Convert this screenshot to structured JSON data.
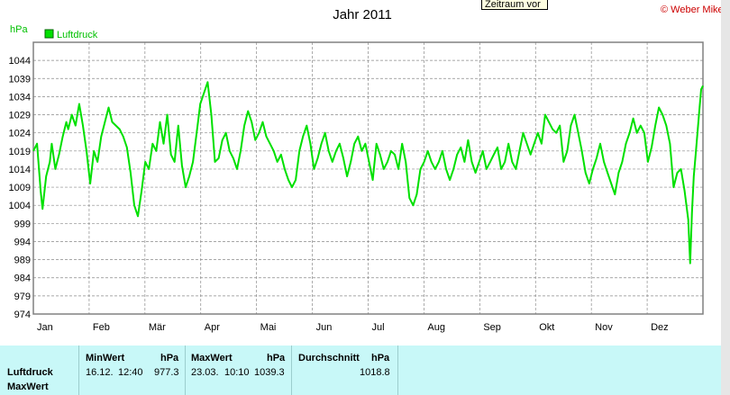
{
  "chart_data": {
    "type": "line",
    "title": "Jahr 2011",
    "ylabel": "hPa",
    "ylim": [
      974,
      1049
    ],
    "y_ticks": [
      974,
      979,
      984,
      989,
      994,
      999,
      1004,
      1009,
      1014,
      1019,
      1024,
      1029,
      1034,
      1039,
      1044
    ],
    "x_tick_labels": [
      "Jan",
      "Feb",
      "Mär",
      "Apr",
      "Mai",
      "Jun",
      "Jul",
      "Aug",
      "Sep",
      "Okt",
      "Nov",
      "Dez"
    ],
    "x_unit_days": 365,
    "grid": true,
    "legend": "top-left",
    "series": [
      {
        "name": "Luftdruck",
        "color": "#00e000",
        "points": [
          [
            0,
            1019
          ],
          [
            2,
            1021
          ],
          [
            4,
            1008
          ],
          [
            5,
            1003
          ],
          [
            7,
            1012
          ],
          [
            9,
            1016
          ],
          [
            10,
            1021
          ],
          [
            12,
            1014
          ],
          [
            14,
            1018
          ],
          [
            16,
            1023
          ],
          [
            18,
            1027
          ],
          [
            19,
            1025
          ],
          [
            21,
            1029
          ],
          [
            23,
            1026
          ],
          [
            25,
            1032
          ],
          [
            27,
            1026
          ],
          [
            29,
            1019
          ],
          [
            31,
            1010
          ],
          [
            33,
            1019
          ],
          [
            35,
            1016
          ],
          [
            37,
            1023
          ],
          [
            39,
            1027
          ],
          [
            41,
            1031
          ],
          [
            43,
            1027
          ],
          [
            45,
            1026
          ],
          [
            47,
            1025
          ],
          [
            49,
            1023
          ],
          [
            51,
            1020
          ],
          [
            53,
            1013
          ],
          [
            55,
            1004
          ],
          [
            57,
            1001
          ],
          [
            59,
            1008
          ],
          [
            61,
            1016
          ],
          [
            63,
            1014
          ],
          [
            65,
            1021
          ],
          [
            67,
            1019
          ],
          [
            69,
            1027
          ],
          [
            71,
            1021
          ],
          [
            73,
            1029
          ],
          [
            75,
            1018
          ],
          [
            77,
            1016
          ],
          [
            79,
            1026
          ],
          [
            81,
            1015
          ],
          [
            83,
            1009
          ],
          [
            85,
            1012
          ],
          [
            87,
            1016
          ],
          [
            89,
            1024
          ],
          [
            91,
            1032
          ],
          [
            93,
            1035
          ],
          [
            95,
            1038
          ],
          [
            97,
            1029
          ],
          [
            99,
            1016
          ],
          [
            101,
            1017
          ],
          [
            103,
            1022
          ],
          [
            105,
            1024
          ],
          [
            107,
            1019
          ],
          [
            109,
            1017
          ],
          [
            111,
            1014
          ],
          [
            113,
            1019
          ],
          [
            115,
            1026
          ],
          [
            117,
            1030
          ],
          [
            119,
            1027
          ],
          [
            121,
            1022
          ],
          [
            123,
            1024
          ],
          [
            125,
            1027
          ],
          [
            127,
            1023
          ],
          [
            129,
            1021
          ],
          [
            131,
            1019
          ],
          [
            133,
            1016
          ],
          [
            135,
            1018
          ],
          [
            137,
            1014
          ],
          [
            139,
            1011
          ],
          [
            141,
            1009
          ],
          [
            143,
            1011
          ],
          [
            145,
            1019
          ],
          [
            147,
            1023
          ],
          [
            149,
            1026
          ],
          [
            151,
            1021
          ],
          [
            153,
            1014
          ],
          [
            155,
            1017
          ],
          [
            157,
            1021
          ],
          [
            159,
            1024
          ],
          [
            161,
            1019
          ],
          [
            163,
            1016
          ],
          [
            165,
            1019
          ],
          [
            167,
            1021
          ],
          [
            169,
            1017
          ],
          [
            171,
            1012
          ],
          [
            173,
            1016
          ],
          [
            175,
            1021
          ],
          [
            177,
            1023
          ],
          [
            179,
            1019
          ],
          [
            181,
            1021
          ],
          [
            183,
            1016
          ],
          [
            185,
            1011
          ],
          [
            187,
            1021
          ],
          [
            189,
            1018
          ],
          [
            191,
            1014
          ],
          [
            193,
            1016
          ],
          [
            195,
            1019
          ],
          [
            197,
            1018
          ],
          [
            199,
            1014
          ],
          [
            201,
            1021
          ],
          [
            203,
            1016
          ],
          [
            205,
            1006
          ],
          [
            207,
            1004
          ],
          [
            209,
            1007
          ],
          [
            211,
            1014
          ],
          [
            213,
            1016
          ],
          [
            215,
            1019
          ],
          [
            217,
            1016
          ],
          [
            219,
            1014
          ],
          [
            221,
            1016
          ],
          [
            223,
            1019
          ],
          [
            225,
            1014
          ],
          [
            227,
            1011
          ],
          [
            229,
            1014
          ],
          [
            231,
            1018
          ],
          [
            233,
            1020
          ],
          [
            235,
            1016
          ],
          [
            237,
            1022
          ],
          [
            239,
            1016
          ],
          [
            241,
            1013
          ],
          [
            243,
            1016
          ],
          [
            245,
            1019
          ],
          [
            247,
            1014
          ],
          [
            249,
            1016
          ],
          [
            251,
            1018
          ],
          [
            253,
            1020
          ],
          [
            255,
            1014
          ],
          [
            257,
            1016
          ],
          [
            259,
            1021
          ],
          [
            261,
            1016
          ],
          [
            263,
            1014
          ],
          [
            265,
            1019
          ],
          [
            267,
            1024
          ],
          [
            269,
            1021
          ],
          [
            271,
            1018
          ],
          [
            273,
            1021
          ],
          [
            275,
            1024
          ],
          [
            277,
            1021
          ],
          [
            279,
            1029
          ],
          [
            281,
            1027
          ],
          [
            283,
            1025
          ],
          [
            285,
            1024
          ],
          [
            287,
            1026
          ],
          [
            289,
            1016
          ],
          [
            291,
            1019
          ],
          [
            293,
            1026
          ],
          [
            295,
            1029
          ],
          [
            297,
            1024
          ],
          [
            299,
            1019
          ],
          [
            301,
            1013
          ],
          [
            303,
            1010
          ],
          [
            305,
            1014
          ],
          [
            307,
            1017
          ],
          [
            309,
            1021
          ],
          [
            311,
            1016
          ],
          [
            313,
            1013
          ],
          [
            315,
            1010
          ],
          [
            317,
            1007
          ],
          [
            319,
            1013
          ],
          [
            321,
            1016
          ],
          [
            323,
            1021
          ],
          [
            325,
            1024
          ],
          [
            327,
            1028
          ],
          [
            329,
            1024
          ],
          [
            331,
            1026
          ],
          [
            333,
            1024
          ],
          [
            335,
            1016
          ],
          [
            337,
            1020
          ],
          [
            339,
            1026
          ],
          [
            341,
            1031
          ],
          [
            343,
            1029
          ],
          [
            345,
            1026
          ],
          [
            347,
            1021
          ],
          [
            349,
            1009
          ],
          [
            351,
            1013
          ],
          [
            353,
            1014
          ],
          [
            355,
            1008
          ],
          [
            357,
            1000
          ],
          [
            358,
            988
          ],
          [
            359,
            1002
          ],
          [
            360,
            1012
          ],
          [
            361,
            1018
          ],
          [
            362,
            1024
          ],
          [
            363,
            1030
          ],
          [
            364,
            1036
          ],
          [
            365,
            1037
          ]
        ]
      }
    ]
  },
  "legend": {
    "label": "Luftdruck",
    "color": "#00e000"
  },
  "header": {
    "title": "Jahr 2011",
    "copyright": "© Weber Mike",
    "tooltip": "Zeitraum vor",
    "unit": "hPa"
  },
  "stats": {
    "row_labels": [
      "Luftdruck",
      "MaxWert"
    ],
    "min": {
      "label": "MinWert",
      "unit": "hPa",
      "date": "16.12.",
      "time": "12:40",
      "value": "977.3"
    },
    "max": {
      "label": "MaxWert",
      "unit": "hPa",
      "date": "23.03.",
      "time": "10:10",
      "value": "1039.3"
    },
    "avg": {
      "label": "Durchschnitt",
      "unit": "hPa",
      "value": "1018.8"
    }
  }
}
